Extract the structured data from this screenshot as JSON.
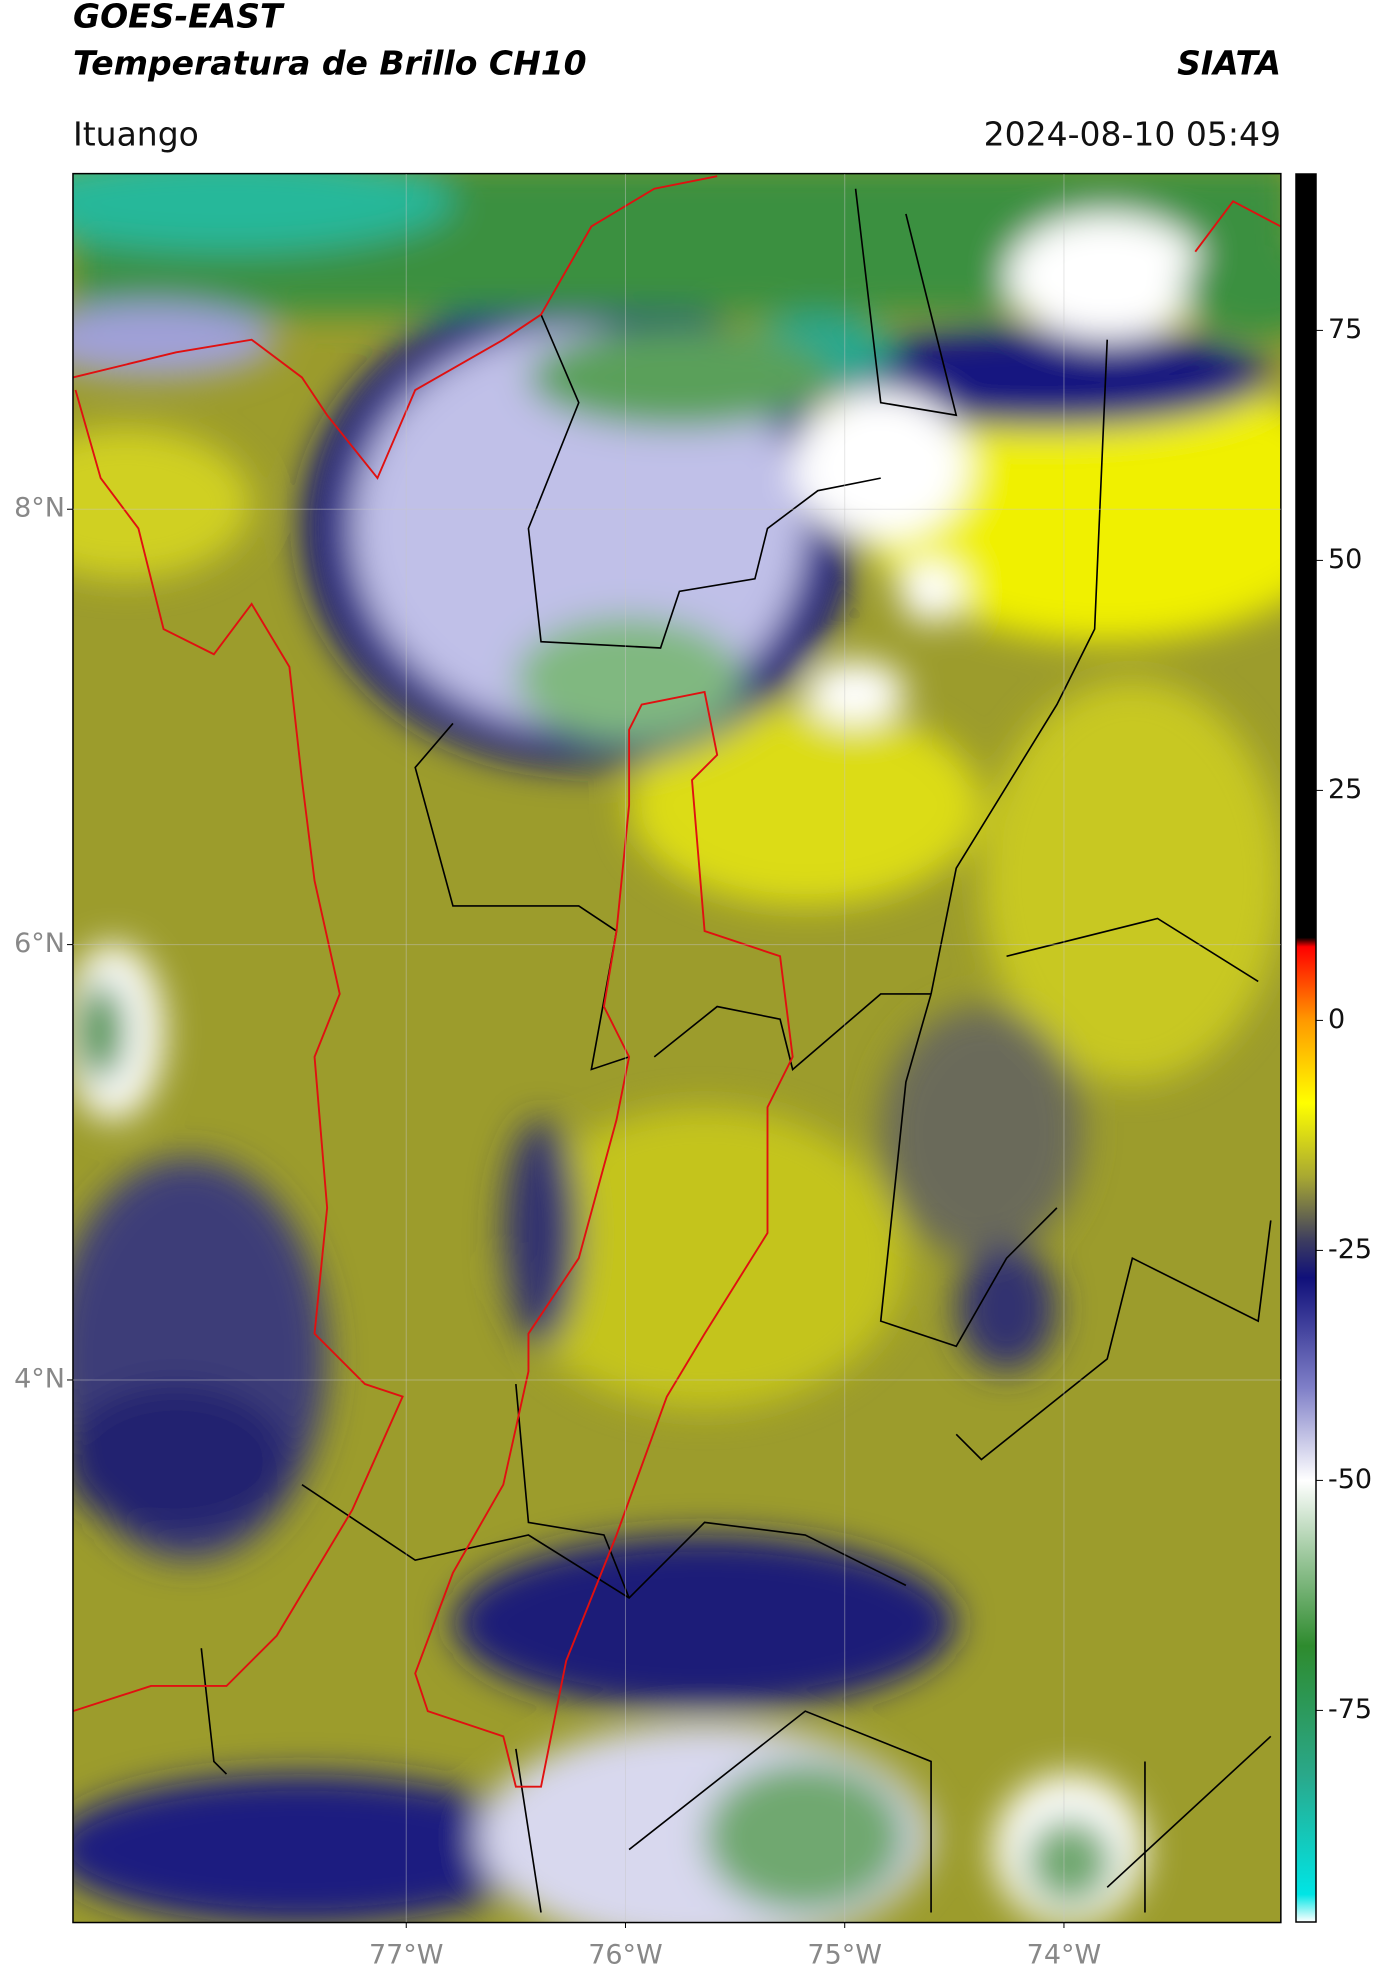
{
  "header": {
    "title_lines": [
      "GOES-EAST",
      "Temperatura de Brillo CH10"
    ],
    "organization": "SIATA",
    "location": "Ituango",
    "datetime": "2024-08-10 05:49"
  },
  "map": {
    "xlim": [
      -78.52,
      -73.01
    ],
    "ylim": [
      1.51,
      9.54
    ],
    "xticks": [
      {
        "value": -77,
        "label": "77°W"
      },
      {
        "value": -76,
        "label": "76°W"
      },
      {
        "value": -75,
        "label": "75°W"
      },
      {
        "value": -74,
        "label": "74°W"
      }
    ],
    "yticks": [
      {
        "value": 4,
        "label": "4°N"
      },
      {
        "value": 6,
        "label": "6°N"
      },
      {
        "value": 8,
        "label": "8°N"
      }
    ],
    "grid": true
  },
  "colorbar": {
    "lim": [
      -98,
      92
    ],
    "ticks": [
      75,
      50,
      25,
      0,
      -25,
      -50,
      -75
    ],
    "stops": [
      {
        "value": -98,
        "color": "#ffffff"
      },
      {
        "value": -95,
        "color": "#00e5e5"
      },
      {
        "value": -82,
        "color": "#2aa88a"
      },
      {
        "value": -68,
        "color": "#2e8b2e"
      },
      {
        "value": -58,
        "color": "#9fc99f"
      },
      {
        "value": -50,
        "color": "#ffffff"
      },
      {
        "value": -40,
        "color": "#8080c8"
      },
      {
        "value": -28,
        "color": "#10107a"
      },
      {
        "value": -24,
        "color": "#3c3c60"
      },
      {
        "value": -17,
        "color": "#a8a832"
      },
      {
        "value": -9,
        "color": "#ffff00"
      },
      {
        "value": 0,
        "color": "#ff9900"
      },
      {
        "value": 8,
        "color": "#ff0000"
      },
      {
        "value": 9,
        "color": "#000000"
      },
      {
        "value": 92,
        "color": "#000000"
      }
    ]
  }
}
